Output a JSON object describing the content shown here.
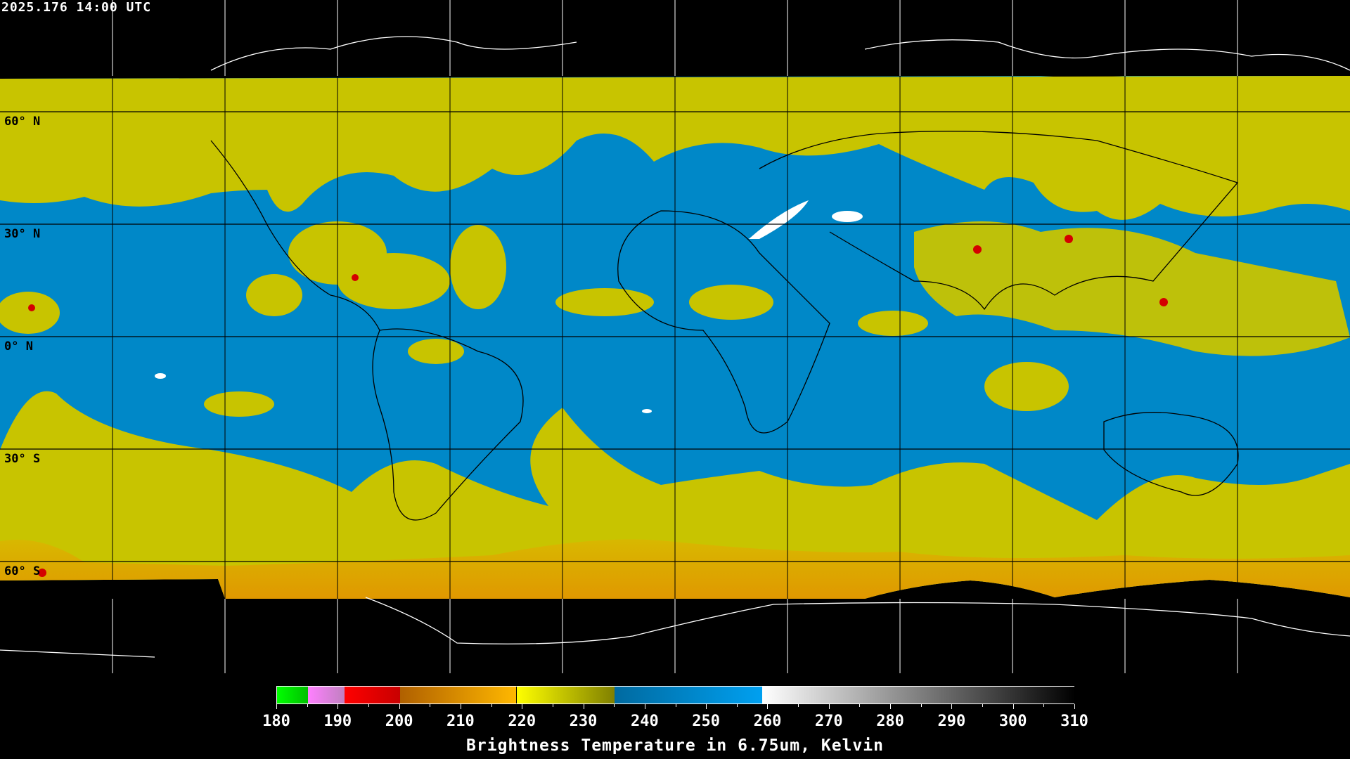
{
  "timestamp": "2025.176 14:00 UTC",
  "map": {
    "lat_labels": [
      "60° N",
      "30° N",
      "0° N",
      "30° S",
      "60° S"
    ],
    "grid_spacing_deg": 30,
    "colors": {
      "cold_band": "#c8c400",
      "moist_free": "#0088c8",
      "deep_convection": "#e0a000",
      "very_cold": "#d40000",
      "dry": "#ffffff"
    }
  },
  "colorbar": {
    "min": 180,
    "max": 310,
    "tick_labels": [
      "180",
      "190",
      "200",
      "210",
      "220",
      "230",
      "240",
      "250",
      "260",
      "270",
      "280",
      "290",
      "300",
      "310"
    ],
    "segments": [
      {
        "from": 180,
        "to": 185,
        "colors": [
          "#00ff00",
          "#00c000"
        ]
      },
      {
        "from": 185,
        "to": 191,
        "colors": [
          "#ff80ff",
          "#c080c0"
        ]
      },
      {
        "from": 191,
        "to": 200,
        "colors": [
          "#ff0000",
          "#c80000"
        ]
      },
      {
        "from": 200,
        "to": 219,
        "colors": [
          "#b06000",
          "#ffb800"
        ]
      },
      {
        "from": 219,
        "to": 235,
        "colors": [
          "#ffff00",
          "#808000"
        ]
      },
      {
        "from": 235,
        "to": 259,
        "colors": [
          "#006aa0",
          "#00a0f0"
        ]
      },
      {
        "from": 259,
        "to": 310,
        "colors": [
          "#ffffff",
          "#000000"
        ]
      }
    ],
    "title": "Brightness Temperature in 6.75um, Kelvin"
  }
}
